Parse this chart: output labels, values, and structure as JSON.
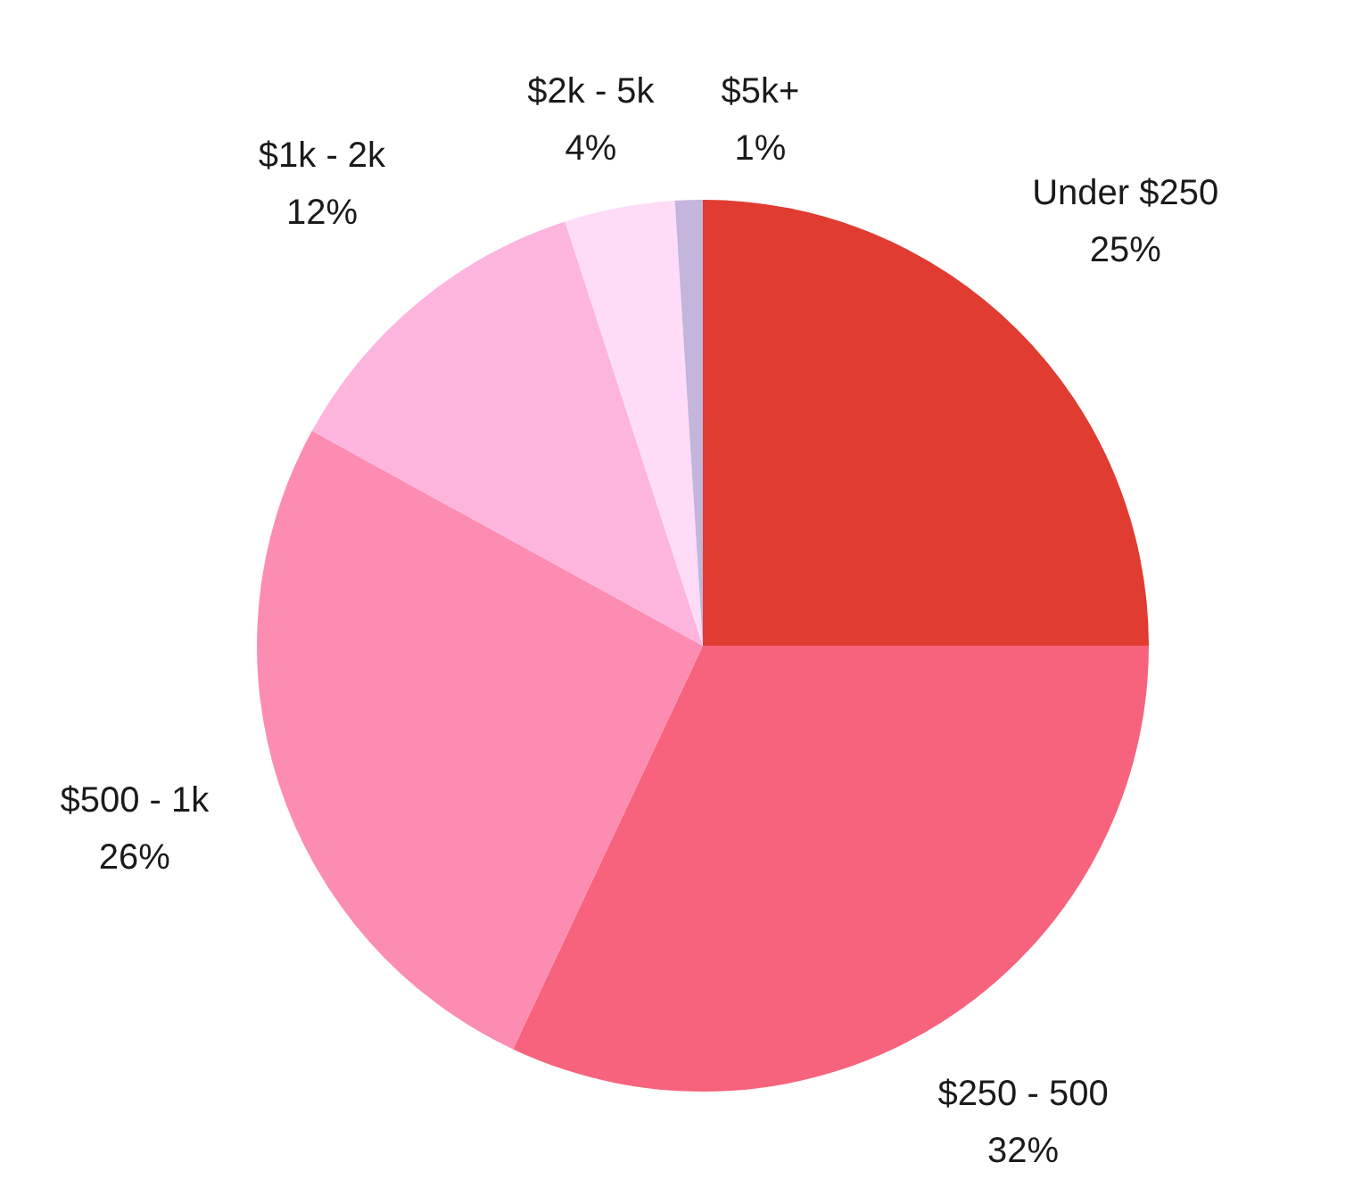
{
  "chart_data": {
    "type": "pie",
    "categories": [
      "Under $250",
      "$250 - 500",
      "$500 - 1k",
      "$1k - 2k",
      "$2k - 5k",
      "$5k+"
    ],
    "values": [
      25,
      32,
      26,
      12,
      4,
      1
    ],
    "value_labels": [
      "25%",
      "32%",
      "26%",
      "12%",
      "4%",
      "1%"
    ],
    "colors": [
      "#e03c31",
      "#f7637c",
      "#fd8cb3",
      "#fdb5de",
      "#fedcf8",
      "#c4b5dc"
    ],
    "legend": false
  }
}
